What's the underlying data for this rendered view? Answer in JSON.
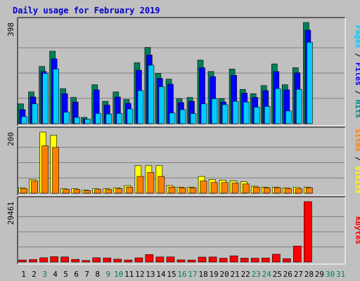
{
  "chart_data": {
    "type": "bar",
    "title": "Daily usage for February 2019",
    "x": [
      "1",
      "2",
      "3",
      "4",
      "5",
      "6",
      "7",
      "8",
      "9",
      "10",
      "11",
      "12",
      "13",
      "14",
      "15",
      "16",
      "17",
      "18",
      "19",
      "20",
      "21",
      "22",
      "23",
      "24",
      "25",
      "26",
      "27",
      "28",
      "29",
      "30",
      "31"
    ],
    "weekend_days": [
      "3",
      "9",
      "10",
      "16",
      "17",
      "23",
      "24",
      "30",
      "31"
    ],
    "panels": [
      {
        "label_parts": [
          "Pages",
          "Files",
          "Hits"
        ],
        "label_colors": [
          "#00ccff",
          "#0000ff",
          "#008080"
        ],
        "ymax": 398,
        "ymax_label": "398",
        "series": [
          {
            "name": "Hits",
            "color": "#00805c",
            "values": [
              78,
              125,
              225,
              285,
              138,
              103,
              25,
              153,
              88,
              125,
              95,
              240,
              300,
              198,
              175,
              98,
              103,
              250,
              205,
              98,
              215,
              135,
              118,
              150,
              235,
              153,
              220,
              398,
              0,
              0,
              0
            ]
          },
          {
            "name": "Files",
            "color": "#0000ff",
            "values": [
              55,
              105,
              205,
              255,
              118,
              85,
              18,
              133,
              73,
              105,
              80,
              210,
              270,
              178,
              155,
              83,
              88,
              220,
              185,
              85,
              190,
              120,
              103,
              130,
              205,
              133,
              200,
              368,
              0,
              0,
              0
            ]
          },
          {
            "name": "Pages",
            "color": "#00ccff",
            "values": [
              28,
              78,
              198,
              215,
              45,
              25,
              18,
              40,
              38,
              40,
              58,
              130,
              230,
              145,
              42,
              55,
              40,
              78,
              98,
              75,
              88,
              85,
              65,
              68,
              138,
              50,
              135,
              320,
              0,
              0,
              0
            ]
          }
        ]
      },
      {
        "label_parts": [
          "Sites",
          "Visits"
        ],
        "label_colors": [
          "#ff8000",
          "#ffff00"
        ],
        "ymax": 200,
        "ymax_label": "200",
        "series": [
          {
            "name": "Visits",
            "color": "#ffff00",
            "values": [
              18,
              45,
              200,
              190,
              15,
              15,
              10,
              15,
              15,
              18,
              25,
              90,
              90,
              90,
              25,
              20,
              20,
              55,
              45,
              43,
              40,
              38,
              23,
              20,
              20,
              18,
              20,
              20,
              0,
              0,
              0
            ]
          },
          {
            "name": "Sites",
            "color": "#ff8000",
            "values": [
              15,
              40,
              155,
              150,
              12,
              12,
              8,
              12,
              12,
              15,
              20,
              55,
              68,
              55,
              20,
              18,
              18,
              40,
              35,
              35,
              33,
              30,
              20,
              18,
              18,
              15,
              15,
              18,
              0,
              0,
              0
            ]
          }
        ]
      },
      {
        "label_parts": [
          "KBytes"
        ],
        "label_colors": [
          "#ff0000"
        ],
        "ymax": 29461,
        "ymax_label": "29461",
        "series": [
          {
            "name": "KBytes",
            "color": "#ff0000",
            "values": [
              1000,
              1200,
              2100,
              2600,
              2500,
              1300,
              750,
              2100,
              2000,
              1400,
              1000,
              2050,
              3650,
              2450,
              2500,
              1050,
              950,
              2400,
              2450,
              1850,
              3000,
              1900,
              1850,
              1950,
              3800,
              1650,
              7800,
              29461,
              0,
              0,
              0
            ]
          }
        ]
      }
    ]
  }
}
